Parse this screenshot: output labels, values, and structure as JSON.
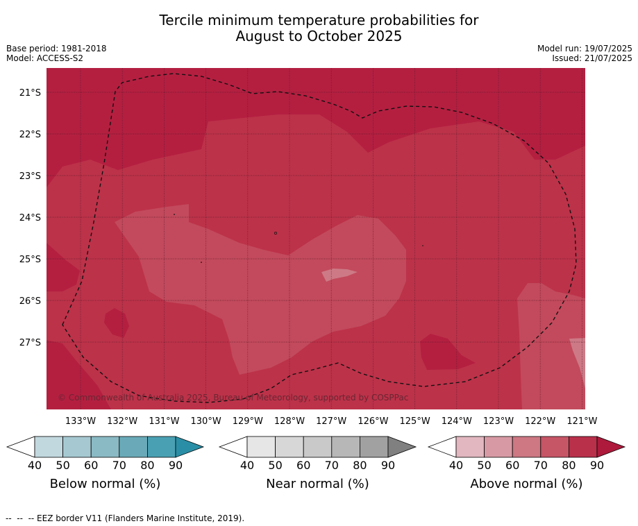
{
  "title_line1": "Tercile minimum temperature probabilities for",
  "title_line2": "August to October 2025",
  "base_period": "Base period: 1981-2018",
  "model": "Model: ACCESS-S2",
  "model_run": "Model run: 19/07/2025",
  "issued": "Issued: 21/07/2025",
  "map": {
    "lat_labels": [
      "21°S",
      "22°S",
      "23°S",
      "24°S",
      "25°S",
      "26°S",
      "27°S"
    ],
    "lon_labels": [
      "133°W",
      "132°W",
      "131°W",
      "130°W",
      "129°W",
      "128°W",
      "127°W",
      "126°W",
      "125°W",
      "124°W",
      "123°W",
      "122°W",
      "121°W"
    ],
    "copyright": "© Commonwealth of Australia 2025, Bureau of Meteorology, supported by COSPPac"
  },
  "legends": [
    {
      "label": "Below normal (%)",
      "ticks": [
        "40",
        "50",
        "60",
        "70",
        "80",
        "90"
      ],
      "colors": [
        "#ffffff",
        "#c1d8df",
        "#a6c9d1",
        "#8abac4",
        "#6aaab8",
        "#4aa0b3",
        "#2a8fa6"
      ]
    },
    {
      "label": "Near normal (%)",
      "ticks": [
        "40",
        "50",
        "60",
        "70",
        "80",
        "90"
      ],
      "colors": [
        "#ffffff",
        "#e6e6e6",
        "#d7d7d7",
        "#c9c9c9",
        "#b7b7b7",
        "#a1a1a1",
        "#808080"
      ]
    },
    {
      "label": "Above normal (%)",
      "ticks": [
        "40",
        "50",
        "60",
        "70",
        "80",
        "90"
      ],
      "colors": [
        "#ffffff",
        "#e2b7bf",
        "#d79aa4",
        "#cd7883",
        "#c65566",
        "#b9304b",
        "#ad1a3b"
      ]
    }
  ],
  "footer": "--  --  -- EEZ border V11 (Flanders Marine Institute, 2019).",
  "colors": {
    "above_80": "#b41f40",
    "above_70": "#bc3249",
    "above_60": "#c24a5c",
    "above_50": "#cd7a86",
    "grid": "#5a1b2a"
  }
}
